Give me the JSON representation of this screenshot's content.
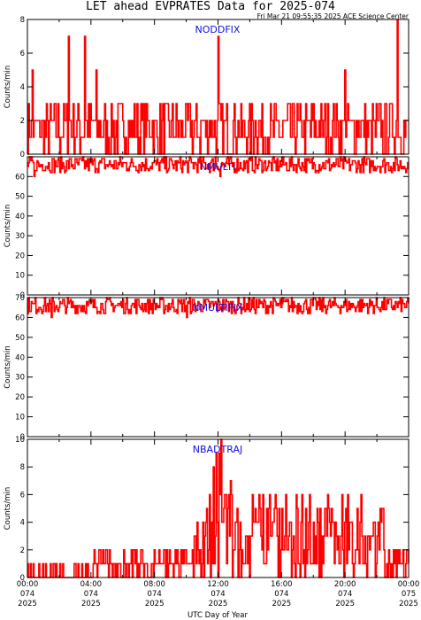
{
  "title": "LET ahead EVPRATES Data for 2025-074",
  "timestamp": "Fri Mar 21 09:55:35 2025 ACE Science Center",
  "xlabel": "UTC Day of Year",
  "series_color": "#ff0000",
  "label_color": "#1010e0",
  "chart_data": [
    {
      "type": "line",
      "title": "NODDFIX",
      "ylabel": "Counts/min",
      "ylim": [
        0,
        8
      ],
      "yticks": [
        0,
        2,
        4,
        6,
        8
      ],
      "xlim": [
        0,
        24
      ],
      "baseline": 1.5,
      "noise": [
        0,
        3
      ],
      "spikes": [
        [
          2.6,
          7
        ],
        [
          3.6,
          7
        ],
        [
          12.0,
          7
        ],
        [
          23.3,
          8
        ],
        [
          0.3,
          5
        ],
        [
          4.3,
          5
        ],
        [
          20.0,
          5
        ]
      ]
    },
    {
      "type": "line",
      "title": "NMULTI",
      "ylabel": "Counts/min",
      "ylim": [
        0,
        70
      ],
      "yticks": [
        0,
        10,
        20,
        30,
        40,
        50,
        60
      ],
      "xlim": [
        0,
        24
      ],
      "baseline": 66,
      "noise": [
        62,
        70
      ],
      "spikes": [
        [
          11.8,
          72
        ],
        [
          12.1,
          60
        ],
        [
          0.4,
          60
        ]
      ]
    },
    {
      "type": "line",
      "title": "NMULTIFIX",
      "ylabel": "Counts/min",
      "ylim": [
        0,
        70
      ],
      "yticks": [
        0,
        10,
        20,
        30,
        40,
        50,
        60,
        70
      ],
      "xlim": [
        0,
        24
      ],
      "baseline": 66,
      "noise": [
        62,
        70
      ],
      "spikes": [
        [
          1.5,
          60
        ],
        [
          10.0,
          60
        ]
      ]
    },
    {
      "type": "line",
      "title": "NBADTRAJ",
      "ylabel": "Counts/min",
      "ylim": [
        0,
        10
      ],
      "yticks": [
        0,
        2,
        4,
        6,
        8,
        10
      ],
      "xlim": [
        0,
        24
      ],
      "baseline": 0.5,
      "noise": [
        0,
        1
      ],
      "bursts": [
        [
          10.5,
          14.0,
          0,
          10
        ],
        [
          14.0,
          22.5,
          0,
          6
        ],
        [
          4.0,
          10.5,
          0,
          2
        ],
        [
          22.5,
          24,
          0,
          2
        ]
      ],
      "spikes": [
        [
          12.2,
          10
        ],
        [
          11.9,
          9
        ],
        [
          16.9,
          6
        ],
        [
          21.0,
          6
        ],
        [
          19.8,
          6
        ],
        [
          15.5,
          4
        ],
        [
          17.2,
          4
        ]
      ]
    }
  ],
  "xtick_labels": [
    {
      "time": "00:00",
      "doy": "074",
      "year": "2025",
      "t": 0
    },
    {
      "time": "04:00",
      "doy": "074",
      "year": "2025",
      "t": 4
    },
    {
      "time": "08:00",
      "doy": "074",
      "year": "2025",
      "t": 8
    },
    {
      "time": "12:00",
      "doy": "074",
      "year": "2025",
      "t": 12
    },
    {
      "time": "16:00",
      "doy": "074",
      "year": "2025",
      "t": 16
    },
    {
      "time": "20:00",
      "doy": "074",
      "year": "2025",
      "t": 20
    },
    {
      "time": "00:00",
      "doy": "075",
      "year": "2025",
      "t": 24
    }
  ]
}
